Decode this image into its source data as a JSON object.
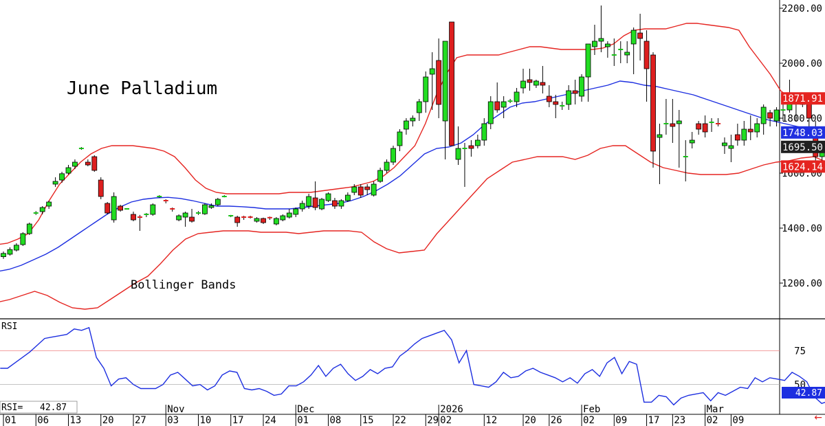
{
  "chart_data": {
    "type": "candlestick",
    "title": "June Palladium",
    "indicator_label": "Bollinger Bands",
    "price_axis": {
      "ticks": [
        "2200.00",
        "2000.00",
        "1800.00",
        "1600.00",
        "1400.00",
        "1200.00"
      ],
      "tick_values": [
        2200,
        2000,
        1800,
        1600,
        1400,
        1200
      ],
      "range": [
        1070,
        2225
      ]
    },
    "price_tags": [
      {
        "label": "1871.91",
        "value": 1871.91,
        "color": "#e52420"
      },
      {
        "label": "1748.03",
        "value": 1748.03,
        "color": "#2030e0"
      },
      {
        "label": "1695.50",
        "value": 1695.5,
        "color": "#202020"
      },
      {
        "label": "1624.14",
        "value": 1624.14,
        "color": "#e52420"
      }
    ],
    "x_axis": {
      "ticks": [
        "01",
        "06",
        "13",
        "20",
        "27",
        "03",
        "10",
        "17",
        "24",
        "01",
        "08",
        "15",
        "22",
        "29",
        "02",
        "12",
        "20",
        "26",
        "02",
        "09",
        "17",
        "23",
        "02",
        "09"
      ],
      "tick_bars": [
        0,
        5,
        10,
        15,
        20,
        25,
        30,
        35,
        40,
        45,
        50,
        55,
        60,
        65,
        67,
        74,
        80,
        84,
        89,
        94,
        99,
        103,
        108,
        112
      ],
      "months": [
        {
          "label": "Nov",
          "bar": 25
        },
        {
          "label": "Dec",
          "bar": 45
        },
        {
          "label": "2026",
          "bar": 67
        },
        {
          "label": "Feb",
          "bar": 89
        },
        {
          "label": "Mar",
          "bar": 108
        }
      ]
    },
    "candles_ohlc": [
      [
        1296,
        1315,
        1288,
        1308
      ],
      [
        1305,
        1330,
        1300,
        1322
      ],
      [
        1320,
        1345,
        1315,
        1338
      ],
      [
        1340,
        1385,
        1335,
        1380
      ],
      [
        1380,
        1420,
        1375,
        1415
      ],
      [
        1455,
        1462,
        1448,
        1455
      ],
      [
        1460,
        1480,
        1450,
        1475
      ],
      [
        1480,
        1500,
        1470,
        1495
      ],
      [
        1560,
        1585,
        1550,
        1570
      ],
      [
        1575,
        1605,
        1565,
        1598
      ],
      [
        1600,
        1630,
        1595,
        1620
      ],
      [
        1625,
        1650,
        1615,
        1640
      ],
      [
        1690,
        1695,
        1685,
        1690
      ],
      [
        1640,
        1650,
        1625,
        1630
      ],
      [
        1660,
        1665,
        1605,
        1610
      ],
      [
        1575,
        1585,
        1505,
        1515
      ],
      [
        1490,
        1495,
        1450,
        1455
      ],
      [
        1430,
        1530,
        1420,
        1515
      ],
      [
        1480,
        1485,
        1460,
        1465
      ],
      [
        1470,
        1472,
        1468,
        1470
      ],
      [
        1450,
        1460,
        1425,
        1430
      ],
      [
        1440,
        1448,
        1390,
        1435
      ],
      [
        1448,
        1455,
        1440,
        1450
      ],
      [
        1450,
        1490,
        1445,
        1485
      ],
      [
        1515,
        1520,
        1510,
        1515
      ],
      [
        1500,
        1505,
        1490,
        1497
      ],
      [
        1470,
        1475,
        1460,
        1465
      ],
      [
        1430,
        1450,
        1425,
        1445
      ],
      [
        1440,
        1460,
        1405,
        1455
      ],
      [
        1440,
        1470,
        1420,
        1425
      ],
      [
        1455,
        1462,
        1448,
        1455
      ],
      [
        1452,
        1490,
        1448,
        1485
      ],
      [
        1475,
        1490,
        1470,
        1482
      ],
      [
        1485,
        1510,
        1480,
        1505
      ],
      [
        1515,
        1520,
        1512,
        1515
      ],
      [
        1442,
        1448,
        1440,
        1445
      ],
      [
        1440,
        1445,
        1405,
        1420
      ],
      [
        1440,
        1445,
        1430,
        1438
      ],
      [
        1440,
        1445,
        1435,
        1438
      ],
      [
        1425,
        1440,
        1420,
        1435
      ],
      [
        1435,
        1438,
        1415,
        1420
      ],
      [
        1438,
        1442,
        1430,
        1435
      ],
      [
        1415,
        1440,
        1410,
        1435
      ],
      [
        1430,
        1450,
        1425,
        1445
      ],
      [
        1440,
        1470,
        1435,
        1455
      ],
      [
        1450,
        1475,
        1440,
        1470
      ],
      [
        1470,
        1500,
        1460,
        1490
      ],
      [
        1480,
        1525,
        1470,
        1515
      ],
      [
        1510,
        1570,
        1465,
        1475
      ],
      [
        1470,
        1510,
        1465,
        1505
      ],
      [
        1500,
        1530,
        1495,
        1525
      ],
      [
        1500,
        1510,
        1470,
        1480
      ],
      [
        1480,
        1505,
        1470,
        1500
      ],
      [
        1500,
        1530,
        1495,
        1520
      ],
      [
        1530,
        1560,
        1520,
        1550
      ],
      [
        1550,
        1560,
        1510,
        1520
      ],
      [
        1550,
        1560,
        1520,
        1540
      ],
      [
        1520,
        1570,
        1515,
        1560
      ],
      [
        1570,
        1620,
        1565,
        1610
      ],
      [
        1610,
        1650,
        1600,
        1640
      ],
      [
        1640,
        1700,
        1630,
        1690
      ],
      [
        1700,
        1760,
        1680,
        1750
      ],
      [
        1760,
        1800,
        1740,
        1790
      ],
      [
        1790,
        1810,
        1770,
        1800
      ],
      [
        1820,
        1870,
        1790,
        1860
      ],
      [
        1860,
        1970,
        1820,
        1950
      ],
      [
        1960,
        2040,
        1830,
        1980
      ],
      [
        2010,
        2090,
        1800,
        1850
      ],
      [
        1790,
        1860,
        1650,
        2080
      ],
      [
        2150,
        2150,
        1700,
        1700
      ],
      [
        1650,
        1770,
        1630,
        1690
      ],
      [
        1690,
        1710,
        1550,
        1690
      ],
      [
        1700,
        1720,
        1660,
        1690
      ],
      [
        1700,
        1740,
        1690,
        1720
      ],
      [
        1720,
        1800,
        1700,
        1780
      ],
      [
        1780,
        1880,
        1760,
        1860
      ],
      [
        1860,
        1930,
        1820,
        1830
      ],
      [
        1840,
        1880,
        1800,
        1860
      ],
      [
        1860,
        1870,
        1855,
        1862
      ],
      [
        1860,
        1910,
        1840,
        1895
      ],
      [
        1910,
        1980,
        1890,
        1935
      ],
      [
        1940,
        1980,
        1900,
        1930
      ],
      [
        1920,
        1940,
        1910,
        1935
      ],
      [
        1930,
        1990,
        1890,
        1920
      ],
      [
        1880,
        1920,
        1840,
        1860
      ],
      [
        1860,
        1885,
        1800,
        1850
      ],
      [
        1840,
        1860,
        1830,
        1845
      ],
      [
        1850,
        1920,
        1830,
        1900
      ],
      [
        1900,
        1940,
        1850,
        1890
      ],
      [
        1880,
        1960,
        1860,
        1950
      ],
      [
        1950,
        2070,
        1860,
        2070
      ],
      [
        2060,
        2140,
        2030,
        2080
      ],
      [
        2080,
        2210,
        2040,
        2090
      ],
      [
        2060,
        2080,
        2020,
        2070
      ],
      [
        2030,
        2090,
        1990,
        2030
      ],
      [
        2050,
        2080,
        2000,
        2050
      ],
      [
        2030,
        2080,
        2000,
        2040
      ],
      [
        2070,
        2130,
        1960,
        2120
      ],
      [
        2110,
        2180,
        2010,
        2090
      ],
      [
        2080,
        2120,
        1860,
        1980
      ],
      [
        2030,
        2040,
        1620,
        1680
      ],
      [
        1730,
        1780,
        1560,
        1740
      ],
      [
        1780,
        1870,
        1740,
        1780
      ],
      [
        1780,
        1870,
        1710,
        1770
      ],
      [
        1780,
        1830,
        1620,
        1790
      ],
      [
        1660,
        1720,
        1570,
        1660
      ],
      [
        1710,
        1750,
        1690,
        1720
      ],
      [
        1780,
        1790,
        1740,
        1760
      ],
      [
        1780,
        1810,
        1730,
        1750
      ],
      [
        1780,
        1800,
        1750,
        1785
      ],
      [
        1780,
        1800,
        1770,
        1775
      ],
      [
        1700,
        1730,
        1670,
        1710
      ],
      [
        1690,
        1740,
        1640,
        1700
      ],
      [
        1740,
        1780,
        1700,
        1720
      ],
      [
        1720,
        1790,
        1700,
        1760
      ],
      [
        1760,
        1810,
        1720,
        1750
      ],
      [
        1750,
        1800,
        1730,
        1780
      ],
      [
        1780,
        1850,
        1740,
        1840
      ],
      [
        1820,
        1830,
        1770,
        1800
      ],
      [
        1790,
        1840,
        1770,
        1830
      ],
      [
        1830,
        1850,
        1790,
        1830
      ],
      [
        1830,
        1940,
        1820,
        1880
      ],
      [
        1870,
        1890,
        1790,
        1860
      ],
      [
        1850,
        1890,
        1840,
        1880
      ],
      [
        1860,
        1890,
        1760,
        1800
      ],
      [
        1760,
        1790,
        1620,
        1660
      ],
      [
        1660,
        1710,
        1640,
        1690
      ],
      [
        1690,
        1730,
        1650,
        1660
      ],
      [
        1650,
        1700,
        1620,
        1700
      ],
      [
        1660,
        1720,
        1570,
        1720
      ],
      [
        1695,
        1710,
        1670,
        1695
      ]
    ],
    "bollinger_upper": [
      1340,
      1345,
      1360,
      1380,
      1430,
      1500,
      1560,
      1600,
      1640,
      1670,
      1690,
      1700,
      1700,
      1700,
      1695,
      1690,
      1680,
      1660,
      1620,
      1575,
      1545,
      1530,
      1525,
      1525,
      1525,
      1525,
      1525,
      1525,
      1530,
      1530,
      1530,
      1535,
      1540,
      1545,
      1550,
      1560,
      1570,
      1590,
      1620,
      1660,
      1700,
      1780,
      1880,
      1960,
      2020,
      2030,
      2030,
      2030,
      2030,
      2040,
      2050,
      2060,
      2060,
      2055,
      2050,
      2050,
      2050,
      2050,
      2055,
      2070,
      2100,
      2120,
      2125,
      2125,
      2125,
      2135,
      2145,
      2145,
      2140,
      2135,
      2130,
      2120,
      2060,
      2010,
      1960,
      1900,
      1870,
      1870,
      1870,
      1875,
      1880,
      1880,
      1878,
      1875
    ],
    "bollinger_middle": [
      1242,
      1250,
      1265,
      1285,
      1305,
      1330,
      1360,
      1390,
      1420,
      1450,
      1475,
      1495,
      1505,
      1510,
      1512,
      1508,
      1500,
      1490,
      1480,
      1480,
      1478,
      1475,
      1470,
      1470,
      1470,
      1475,
      1480,
      1485,
      1490,
      1500,
      1515,
      1535,
      1560,
      1590,
      1630,
      1670,
      1690,
      1695,
      1710,
      1740,
      1780,
      1810,
      1840,
      1855,
      1860,
      1870,
      1880,
      1890,
      1900,
      1910,
      1920,
      1935,
      1930,
      1920,
      1915,
      1905,
      1895,
      1885,
      1870,
      1855,
      1840,
      1825,
      1810,
      1795,
      1785,
      1775,
      1765,
      1760,
      1755,
      1750,
      1748,
      1748
    ],
    "bollinger_lower": [
      1130,
      1140,
      1155,
      1170,
      1155,
      1130,
      1110,
      1105,
      1110,
      1140,
      1170,
      1200,
      1225,
      1270,
      1320,
      1360,
      1380,
      1385,
      1390,
      1390,
      1390,
      1385,
      1385,
      1385,
      1380,
      1385,
      1390,
      1390,
      1390,
      1385,
      1350,
      1325,
      1310,
      1315,
      1320,
      1380,
      1430,
      1480,
      1530,
      1580,
      1610,
      1640,
      1650,
      1660,
      1660,
      1660,
      1650,
      1665,
      1690,
      1700,
      1700,
      1670,
      1640,
      1620,
      1610,
      1600,
      1595,
      1595,
      1595,
      1600,
      1615,
      1630,
      1640,
      1645,
      1655,
      1660,
      1640,
      1635,
      1630,
      1625
    ],
    "rsi": {
      "label": "RSI",
      "readout_label": "RSI=",
      "readout_value": "42.87",
      "current_tag": "42.87",
      "levels": [
        "75",
        "50"
      ],
      "level_values": [
        75,
        50
      ],
      "range": [
        28,
        98
      ],
      "values": [
        62,
        62,
        66,
        70,
        74,
        79,
        84,
        85,
        86,
        87,
        91,
        90,
        92,
        70,
        62,
        49,
        54,
        55,
        50,
        47,
        47,
        47,
        50,
        57,
        59,
        54,
        49,
        50,
        46,
        49,
        57,
        60,
        59,
        47,
        46,
        47,
        45,
        42,
        43,
        49,
        49,
        52,
        57,
        64,
        56,
        62,
        65,
        58,
        53,
        56,
        61,
        58,
        62,
        63,
        71,
        75,
        80,
        84,
        86,
        88,
        90,
        83,
        66,
        75,
        50,
        49,
        48,
        52,
        59,
        55,
        56,
        60,
        62,
        59,
        57,
        55,
        52,
        55,
        51,
        58,
        61,
        56,
        66,
        70,
        58,
        67,
        65,
        37,
        37,
        42,
        41,
        35,
        40,
        42,
        43,
        44,
        38,
        44,
        42,
        45,
        48,
        47,
        55,
        52,
        55,
        54,
        53,
        59,
        56,
        52,
        41,
        36,
        38,
        44,
        46,
        42.87
      ]
    }
  }
}
